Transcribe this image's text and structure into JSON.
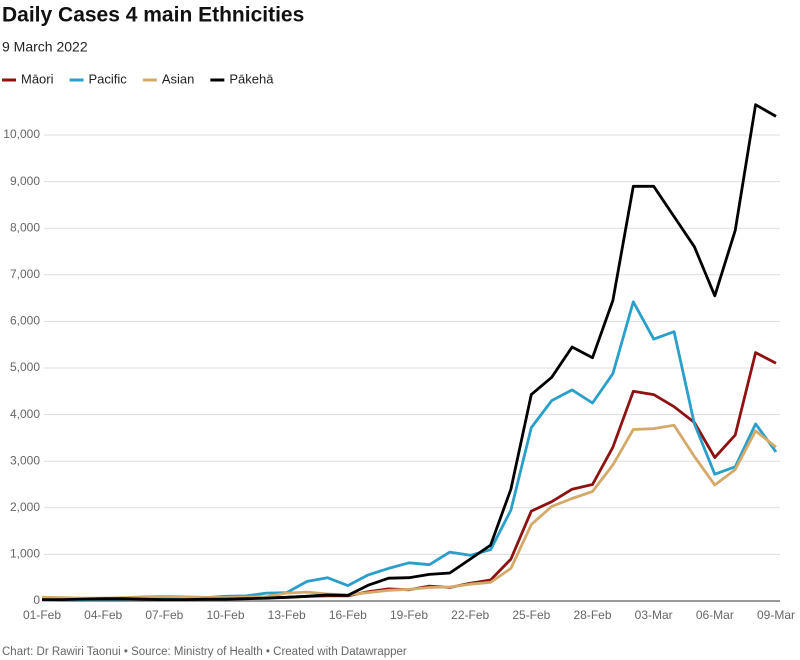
{
  "chart_data": {
    "type": "line",
    "title": "Daily Cases 4 main Ethnicities",
    "subtitle": "9 March 2022",
    "footer": "Chart: Dr Rawiri Taonui • Source: Ministry of Health • Created with Datawrapper",
    "categories": [
      "01-Feb",
      null,
      null,
      "04-Feb",
      null,
      null,
      "07-Feb",
      null,
      null,
      "10-Feb",
      null,
      null,
      "13-Feb",
      null,
      null,
      "16-Feb",
      null,
      null,
      "19-Feb",
      null,
      null,
      "22-Feb",
      null,
      null,
      "25-Feb",
      null,
      null,
      "28-Feb",
      null,
      null,
      "03-Mar",
      null,
      null,
      "06-Mar",
      null,
      null,
      "09-Mar"
    ],
    "series": [
      {
        "name": "Māori",
        "color": "#8e1212",
        "values": [
          30,
          30,
          40,
          40,
          50,
          50,
          40,
          40,
          40,
          50,
          60,
          70,
          80,
          100,
          110,
          110,
          200,
          260,
          240,
          320,
          290,
          380,
          450,
          900,
          1930,
          2130,
          2400,
          2500,
          3300,
          4500,
          4430,
          4170,
          3830,
          3080,
          3560,
          5330,
          5100
        ]
      },
      {
        "name": "Pacific",
        "color": "#2a9fc9",
        "values": [
          20,
          30,
          30,
          40,
          40,
          50,
          50,
          60,
          70,
          100,
          110,
          170,
          180,
          420,
          500,
          330,
          560,
          700,
          820,
          780,
          1050,
          980,
          1100,
          1950,
          3720,
          4300,
          4530,
          4250,
          4880,
          6420,
          5620,
          5780,
          3800,
          2720,
          2880,
          3800,
          3200
        ]
      },
      {
        "name": "Asian",
        "color": "#d4aa6a",
        "values": [
          80,
          70,
          60,
          60,
          70,
          90,
          100,
          90,
          80,
          70,
          80,
          90,
          170,
          190,
          150,
          130,
          180,
          230,
          250,
          290,
          300,
          360,
          400,
          700,
          1640,
          2030,
          2200,
          2350,
          2920,
          3680,
          3700,
          3770,
          3100,
          2490,
          2820,
          3650,
          3300
        ]
      },
      {
        "name": "Pākehā",
        "color": "#000000",
        "values": [
          30,
          30,
          40,
          50,
          50,
          40,
          30,
          30,
          40,
          40,
          50,
          60,
          80,
          100,
          130,
          120,
          340,
          490,
          500,
          570,
          600,
          900,
          1200,
          2400,
          4430,
          4800,
          5450,
          5220,
          6450,
          8900,
          8900,
          8250,
          7600,
          6550,
          7950,
          10650,
          10400
        ]
      }
    ],
    "ylim": [
      0,
      10000
    ],
    "yticks": [
      0,
      {
        "value": 1000,
        "label": "1,000"
      },
      {
        "value": 2000,
        "label": "2,000"
      },
      {
        "value": 3000,
        "label": "3,000"
      },
      {
        "value": 4000,
        "label": "4,000"
      },
      {
        "value": 5000,
        "label": "5,000"
      },
      {
        "value": 6000,
        "label": "6,000"
      },
      {
        "value": 7000,
        "label": "7,000"
      },
      {
        "value": 8000,
        "label": "8,000"
      },
      {
        "value": 9000,
        "label": "9,000"
      },
      {
        "value": 10000,
        "label": "10,000"
      }
    ],
    "grid": true,
    "legend": "top-left"
  }
}
